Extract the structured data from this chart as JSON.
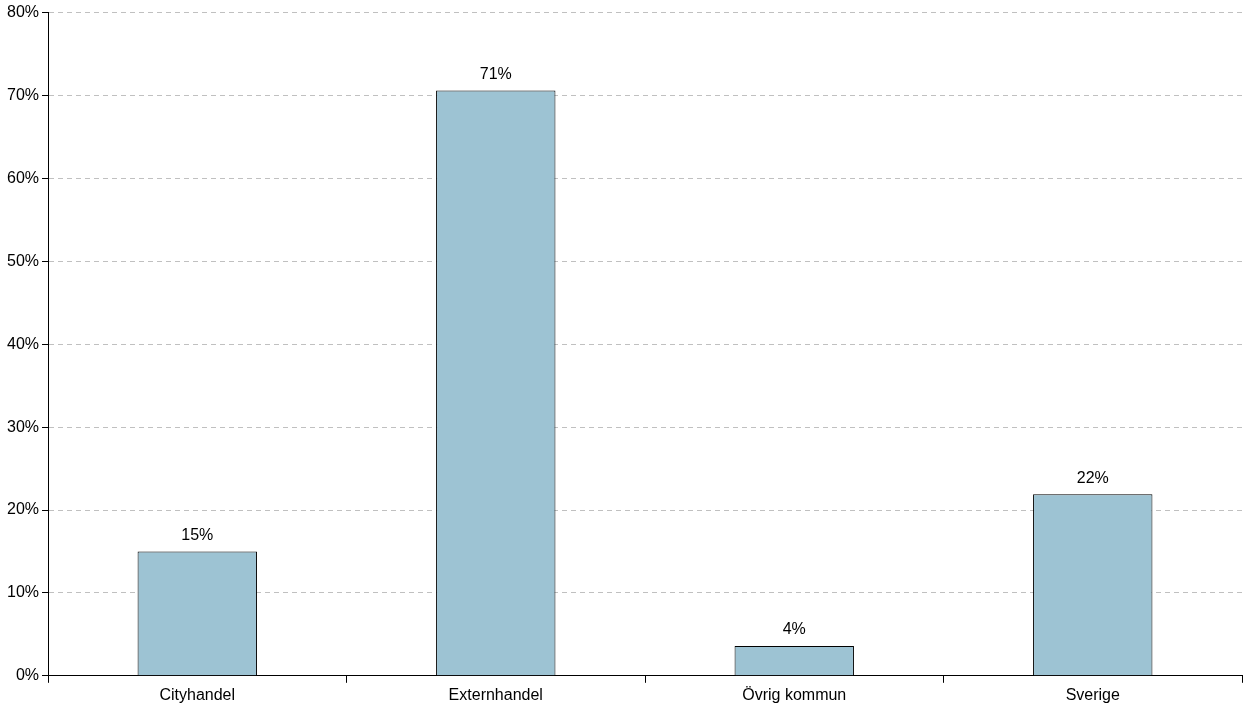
{
  "chart_data": {
    "type": "bar",
    "categories": [
      "Cityhandel",
      "Externhandel",
      "Övrig kommun",
      "Sverige"
    ],
    "values": [
      15,
      70.6,
      3.6,
      21.9
    ],
    "value_labels": [
      "15%",
      "71%",
      "4%",
      "22%"
    ],
    "color": "#9dc3d3",
    "ylim": [
      0,
      80
    ],
    "yticks": [
      {
        "value": 0,
        "label": "0%"
      },
      {
        "value": 10,
        "label": "10%"
      },
      {
        "value": 20,
        "label": "20%"
      },
      {
        "value": 30,
        "label": "30%"
      },
      {
        "value": 40,
        "label": "40%"
      },
      {
        "value": 50,
        "label": "50%"
      },
      {
        "value": 60,
        "label": "60%"
      },
      {
        "value": 70,
        "label": "70%"
      },
      {
        "value": 80,
        "label": "80%"
      }
    ],
    "grid": "y",
    "legend": false
  }
}
